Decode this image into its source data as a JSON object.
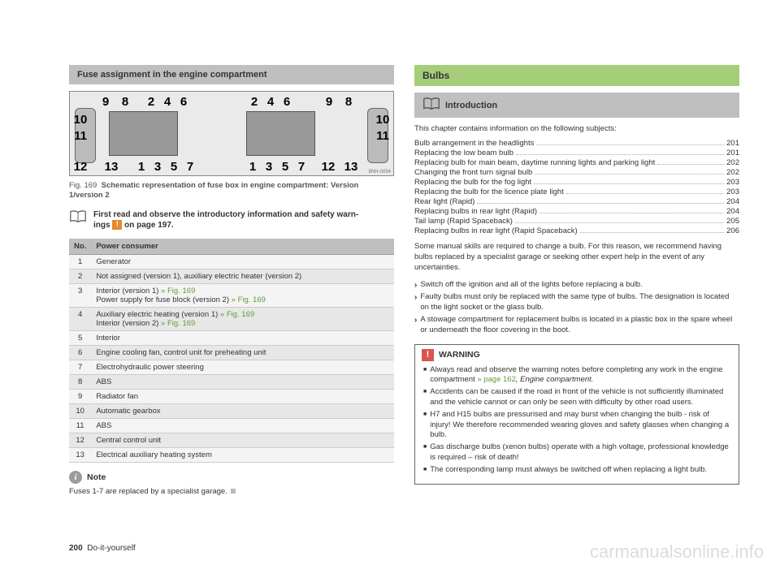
{
  "left": {
    "header": "Fuse assignment in the engine compartment",
    "diagram": {
      "numbers_left": {
        "top": [
          "9",
          "8",
          "2",
          "4",
          "6"
        ],
        "left": [
          "10",
          "11",
          "12"
        ],
        "bottom_left": "13",
        "bottom": [
          "1",
          "3",
          "5",
          "7"
        ]
      },
      "numbers_right": {
        "top": [
          "2",
          "4",
          "6",
          "9",
          "8"
        ],
        "right": [
          "10",
          "11",
          "12"
        ],
        "bottom_right": "13",
        "bottom": [
          "1",
          "3",
          "5",
          "7"
        ]
      },
      "caption_id": "8NH-0054"
    },
    "caption": {
      "prefix": "Fig. 169",
      "text": "Schematic representation of fuse box in engine compartment: Version 1/version 2"
    },
    "info": {
      "line1": "First read and observe the introductory information and safety warn-",
      "line2_a": "ings ",
      "line2_b": " on page 197."
    },
    "table": {
      "headers": [
        "No.",
        "Power consumer"
      ],
      "rows": [
        {
          "n": "1",
          "t": "Generator"
        },
        {
          "n": "2",
          "t": "Not assigned (version 1), auxiliary electric heater (version 2)"
        },
        {
          "n": "3",
          "t_a": "Interior (version 1) ",
          "ref_a": "» Fig. 169",
          "t_b": "Power supply for fuse block (version 2) ",
          "ref_b": "» Fig. 169"
        },
        {
          "n": "4",
          "t_a": "Auxiliary electric heating (version 1) ",
          "ref_a": "» Fig. 169",
          "t_b": "Interior (version 2) ",
          "ref_b": "» Fig. 169"
        },
        {
          "n": "5",
          "t": "Interior"
        },
        {
          "n": "6",
          "t": "Engine cooling fan, control unit for preheating unit"
        },
        {
          "n": "7",
          "t": "Electrohydraulic power steering"
        },
        {
          "n": "8",
          "t": "ABS"
        },
        {
          "n": "9",
          "t": "Radiator fan"
        },
        {
          "n": "10",
          "t": "Automatic gearbox"
        },
        {
          "n": "11",
          "t": "ABS"
        },
        {
          "n": "12",
          "t": "Central control unit"
        },
        {
          "n": "13",
          "t": "Electrical auxiliary heating system"
        }
      ]
    },
    "note": {
      "title": "Note",
      "text": "Fuses 1-7 are replaced by a specialist garage."
    }
  },
  "right": {
    "title": "Bulbs",
    "sub": "Introduction",
    "intro": "This chapter contains information on the following subjects:",
    "toc": [
      {
        "label": "Bulb arrangement in the headlights",
        "page": "201"
      },
      {
        "label": "Replacing the low beam bulb",
        "page": "201"
      },
      {
        "label": "Replacing bulb for main beam, daytime running lights and parking light",
        "page": "202"
      },
      {
        "label": "Changing the front turn signal bulb",
        "page": "202"
      },
      {
        "label": "Replacing the bulb for the fog light",
        "page": "203"
      },
      {
        "label": "Replacing the bulb for the licence plate light",
        "page": "203"
      },
      {
        "label": "Rear light (Rapid)",
        "page": "204"
      },
      {
        "label": "Replacing bulbs in rear light (Rapid)",
        "page": "204"
      },
      {
        "label": "Tail lamp (Rapid Spaceback)",
        "page": "205"
      },
      {
        "label": "Replacing bulbs in rear light (Rapid Spaceback)",
        "page": "206"
      }
    ],
    "para": "Some manual skills are required to change a bulb. For this reason, we recommend having bulbs replaced by a specialist garage or seeking other expert help in the event of any uncertainties.",
    "bullets": [
      "Switch off the ignition and all of the lights before replacing a bulb.",
      "Faulty bulbs must only be replaced with the same type of bulbs. The designation is located on the light socket or the glass bulb.",
      "A stowage compartment for replacement bulbs is located in a plastic box in the spare wheel or underneath the floor covering in the boot."
    ],
    "warn": {
      "title": "WARNING",
      "items": [
        {
          "t": "Always read and observe the warning notes before completing any work in the engine compartment ",
          "ref": "» page 162",
          "t2": ", Engine compartment.",
          "italic": true
        },
        {
          "t": "Accidents can be caused if the road in front of the vehicle is not sufficiently illuminated and the vehicle cannot or can only be seen with difficulty by other road users."
        },
        {
          "t": "H7 and H15 bulbs are pressurised and may burst when changing the bulb - risk of injury! We therefore recommended wearing gloves and safety glasses when changing a bulb."
        },
        {
          "t": "Gas discharge bulbs (xenon bulbs) operate with a high voltage, professional knowledge is required – risk of death!"
        },
        {
          "t": "The corresponding lamp must always be switched off when replacing a light bulb."
        }
      ]
    }
  },
  "footer": {
    "page": "200",
    "section": "Do-it-yourself"
  },
  "watermark": "carmanualsonline.info"
}
